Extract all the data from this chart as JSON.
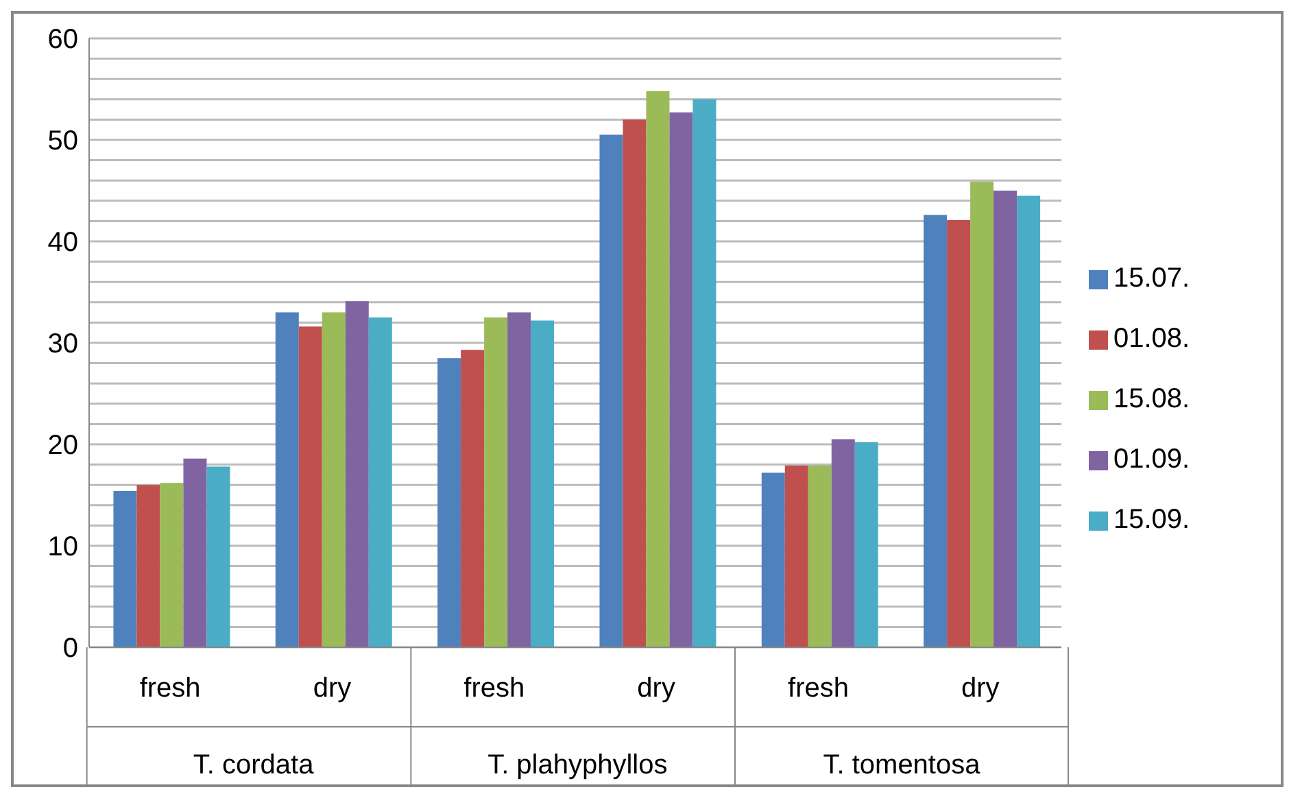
{
  "chart_data": {
    "type": "bar",
    "categories": [
      "fresh",
      "dry",
      "fresh",
      "dry",
      "fresh",
      "dry"
    ],
    "annotations": [
      "T. cordata",
      "T. plahyphyllos",
      "T. tomentosa"
    ],
    "series": [
      {
        "name": "15.07.",
        "color": "#4f81bd",
        "values": [
          15.4,
          33.0,
          28.5,
          50.5,
          17.2,
          42.6
        ]
      },
      {
        "name": "01.08.",
        "color": "#c0504d",
        "values": [
          16.0,
          31.6,
          29.3,
          52.0,
          17.9,
          42.1
        ]
      },
      {
        "name": "15.08.",
        "color": "#9bbb59",
        "values": [
          16.2,
          33.0,
          32.5,
          54.8,
          17.9,
          45.9
        ]
      },
      {
        "name": "01.09.",
        "color": "#8064a2",
        "values": [
          18.6,
          34.1,
          33.0,
          52.7,
          20.5,
          45.0
        ]
      },
      {
        "name": "15.09.",
        "color": "#4bacc6",
        "values": [
          17.8,
          32.5,
          32.2,
          54.0,
          20.2,
          44.5
        ]
      }
    ],
    "ylim": [
      0,
      60
    ],
    "yticks": [
      0,
      {
        "value": 2,
        "label": null
      },
      {
        "value": 4,
        "label": null
      },
      {
        "value": 6,
        "label": null
      },
      {
        "value": 8,
        "label": null
      },
      10,
      {
        "value": 12,
        "label": null
      },
      {
        "value": 14,
        "label": null
      },
      {
        "value": 16,
        "label": null
      },
      {
        "value": 18,
        "label": null
      },
      20,
      {
        "value": 22,
        "label": null
      },
      {
        "value": 24,
        "label": null
      },
      {
        "value": 26,
        "label": null
      },
      {
        "value": 28,
        "label": null
      },
      30,
      {
        "value": 32,
        "label": null
      },
      {
        "value": 34,
        "label": null
      },
      {
        "value": 36,
        "label": null
      },
      {
        "value": 38,
        "label": null
      },
      40,
      {
        "value": 42,
        "label": null
      },
      {
        "value": 44,
        "label": null
      },
      {
        "value": 46,
        "label": null
      },
      {
        "value": 48,
        "label": null
      },
      50,
      {
        "value": 52,
        "label": null
      },
      {
        "value": 54,
        "label": null
      },
      {
        "value": 56,
        "label": null
      },
      {
        "value": 58,
        "label": null
      },
      60
    ],
    "grid": "y",
    "legend": "right"
  }
}
